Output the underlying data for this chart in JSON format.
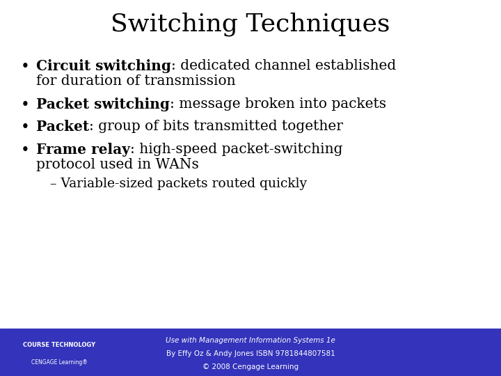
{
  "title": "Switching Techniques",
  "title_fontsize": 26,
  "background_color": "#ffffff",
  "footer_color": "#3333bb",
  "bullet_items": [
    [
      "Circuit switching",
      ": dedicated channel established\nfor duration of transmission"
    ],
    [
      "Packet switching",
      ": message broken into packets"
    ],
    [
      "Packet",
      ": group of bits transmitted together"
    ],
    [
      "Frame relay",
      ": high-speed packet-switching\nprotocol used in WANs"
    ]
  ],
  "sub_bullet": "– Variable-sized packets routed quickly",
  "footer_line1": "Use with Management Information Systems 1e",
  "footer_line2": "By Effy Oz & Andy Jones ISBN 9781844807581",
  "footer_line3": "© 2008 Cengage Learning",
  "footer_text_color": "#ffffff",
  "text_color": "#000000",
  "body_fontsize": 14.5,
  "sub_fontsize": 13.5,
  "footer_fontsize": 7.5
}
